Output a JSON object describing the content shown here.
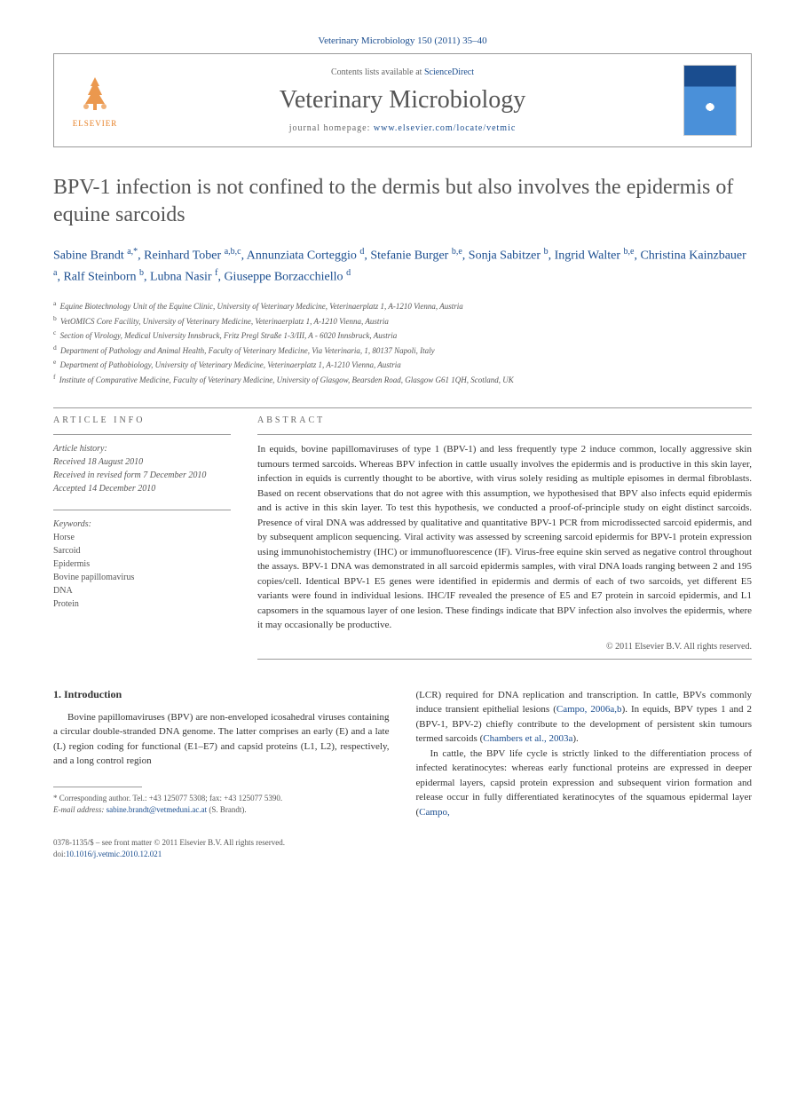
{
  "journal_ref": "Veterinary Microbiology 150 (2011) 35–40",
  "header": {
    "contents_prefix": "Contents lists available at ",
    "contents_link": "ScienceDirect",
    "journal_title": "Veterinary Microbiology",
    "homepage_prefix": "journal homepage: ",
    "homepage_link": "www.elsevier.com/locate/vetmic",
    "publisher": "ELSEVIER"
  },
  "article": {
    "title": "BPV-1 infection is not confined to the dermis but also involves the epidermis of equine sarcoids",
    "authors_html": "Sabine Brandt <sup>a,*</sup>, Reinhard Tober <sup>a,b,c</sup>, Annunziata Corteggio <sup>d</sup>, Stefanie Burger <sup>b,e</sup>, Sonja Sabitzer <sup>b</sup>, Ingrid Walter <sup>b,e</sup>, Christina Kainzbauer <sup>a</sup>, Ralf Steinborn <sup>b</sup>, Lubna Nasir <sup>f</sup>, Giuseppe Borzacchiello <sup>d</sup>"
  },
  "affiliations": [
    {
      "sup": "a",
      "text": "Equine Biotechnology Unit of the Equine Clinic, University of Veterinary Medicine, Veterinaerplatz 1, A-1210 Vienna, Austria"
    },
    {
      "sup": "b",
      "text": "VetOMICS Core Facility, University of Veterinary Medicine, Veterinaerplatz 1, A-1210 Vienna, Austria"
    },
    {
      "sup": "c",
      "text": "Section of Virology, Medical University Innsbruck, Fritz Pregl Straße 1-3/III, A - 6020 Innsbruck, Austria"
    },
    {
      "sup": "d",
      "text": "Department of Pathology and Animal Health, Faculty of Veterinary Medicine, Via Veterinaria, 1, 80137 Napoli, Italy"
    },
    {
      "sup": "e",
      "text": "Department of Pathobiology, University of Veterinary Medicine, Veterinaerplatz 1, A-1210 Vienna, Austria"
    },
    {
      "sup": "f",
      "text": "Institute of Comparative Medicine, Faculty of Veterinary Medicine, University of Glasgow, Bearsden Road, Glasgow G61 1QH, Scotland, UK"
    }
  ],
  "info": {
    "label": "ARTICLE INFO",
    "history_label": "Article history:",
    "received": "Received 18 August 2010",
    "revised": "Received in revised form 7 December 2010",
    "accepted": "Accepted 14 December 2010",
    "keywords_label": "Keywords:",
    "keywords": [
      "Horse",
      "Sarcoid",
      "Epidermis",
      "Bovine papillomavirus",
      "DNA",
      "Protein"
    ]
  },
  "abstract": {
    "label": "ABSTRACT",
    "text": "In equids, bovine papillomaviruses of type 1 (BPV-1) and less frequently type 2 induce common, locally aggressive skin tumours termed sarcoids. Whereas BPV infection in cattle usually involves the epidermis and is productive in this skin layer, infection in equids is currently thought to be abortive, with virus solely residing as multiple episomes in dermal fibroblasts. Based on recent observations that do not agree with this assumption, we hypothesised that BPV also infects equid epidermis and is active in this skin layer. To test this hypothesis, we conducted a proof-of-principle study on eight distinct sarcoids. Presence of viral DNA was addressed by qualitative and quantitative BPV-1 PCR from microdissected sarcoid epidermis, and by subsequent amplicon sequencing. Viral activity was assessed by screening sarcoid epidermis for BPV-1 protein expression using immunohistochemistry (IHC) or immunofluorescence (IF). Virus-free equine skin served as negative control throughout the assays. BPV-1 DNA was demonstrated in all sarcoid epidermis samples, with viral DNA loads ranging between 2 and 195 copies/cell. Identical BPV-1 E5 genes were identified in epidermis and dermis of each of two sarcoids, yet different E5 variants were found in individual lesions. IHC/IF revealed the presence of E5 and E7 protein in sarcoid epidermis, and L1 capsomers in the squamous layer of one lesion. These findings indicate that BPV infection also involves the epidermis, where it may occasionally be productive.",
    "copyright": "© 2011 Elsevier B.V. All rights reserved."
  },
  "body": {
    "section1_heading": "1. Introduction",
    "col1_p1": "Bovine papillomaviruses (BPV) are non-enveloped icosahedral viruses containing a circular double-stranded DNA genome. The latter comprises an early (E) and a late (L) region coding for functional (E1–E7) and capsid proteins (L1, L2), respectively, and a long control region",
    "col2_p1_pre": "(LCR) required for DNA replication and transcription. In cattle, BPVs commonly induce transient epithelial lesions (",
    "col2_p1_link1": "Campo, 2006a,b",
    "col2_p1_mid1": "). In equids, BPV types 1 and 2 (BPV-1, BPV-2) chiefly contribute to the development of persistent skin tumours termed sarcoids (",
    "col2_p1_link2": "Chambers et al., 2003a",
    "col2_p1_post": ").",
    "col2_p2_pre": "In cattle, the BPV life cycle is strictly linked to the differentiation process of infected keratinocytes: whereas early functional proteins are expressed in deeper epidermal layers, capsid protein expression and subsequent virion formation and release occur in fully differentiated keratinocytes of the squamous epidermal layer (",
    "col2_p2_link": "Campo,"
  },
  "footnote": {
    "corr_label": "* Corresponding author. Tel.: +43 125077 5308; fax: +43 125077 5390.",
    "email_label": "E-mail address:",
    "email": "sabine.brandt@vetmeduni.ac.at",
    "email_name": "(S. Brandt)."
  },
  "footer": {
    "issn_line": "0378-1135/$ – see front matter © 2011 Elsevier B.V. All rights reserved.",
    "doi_prefix": "doi:",
    "doi": "10.1016/j.vetmic.2010.12.021"
  },
  "colors": {
    "link": "#1a4d8f",
    "text": "#333333",
    "muted": "#666666",
    "orange": "#e67e22"
  }
}
